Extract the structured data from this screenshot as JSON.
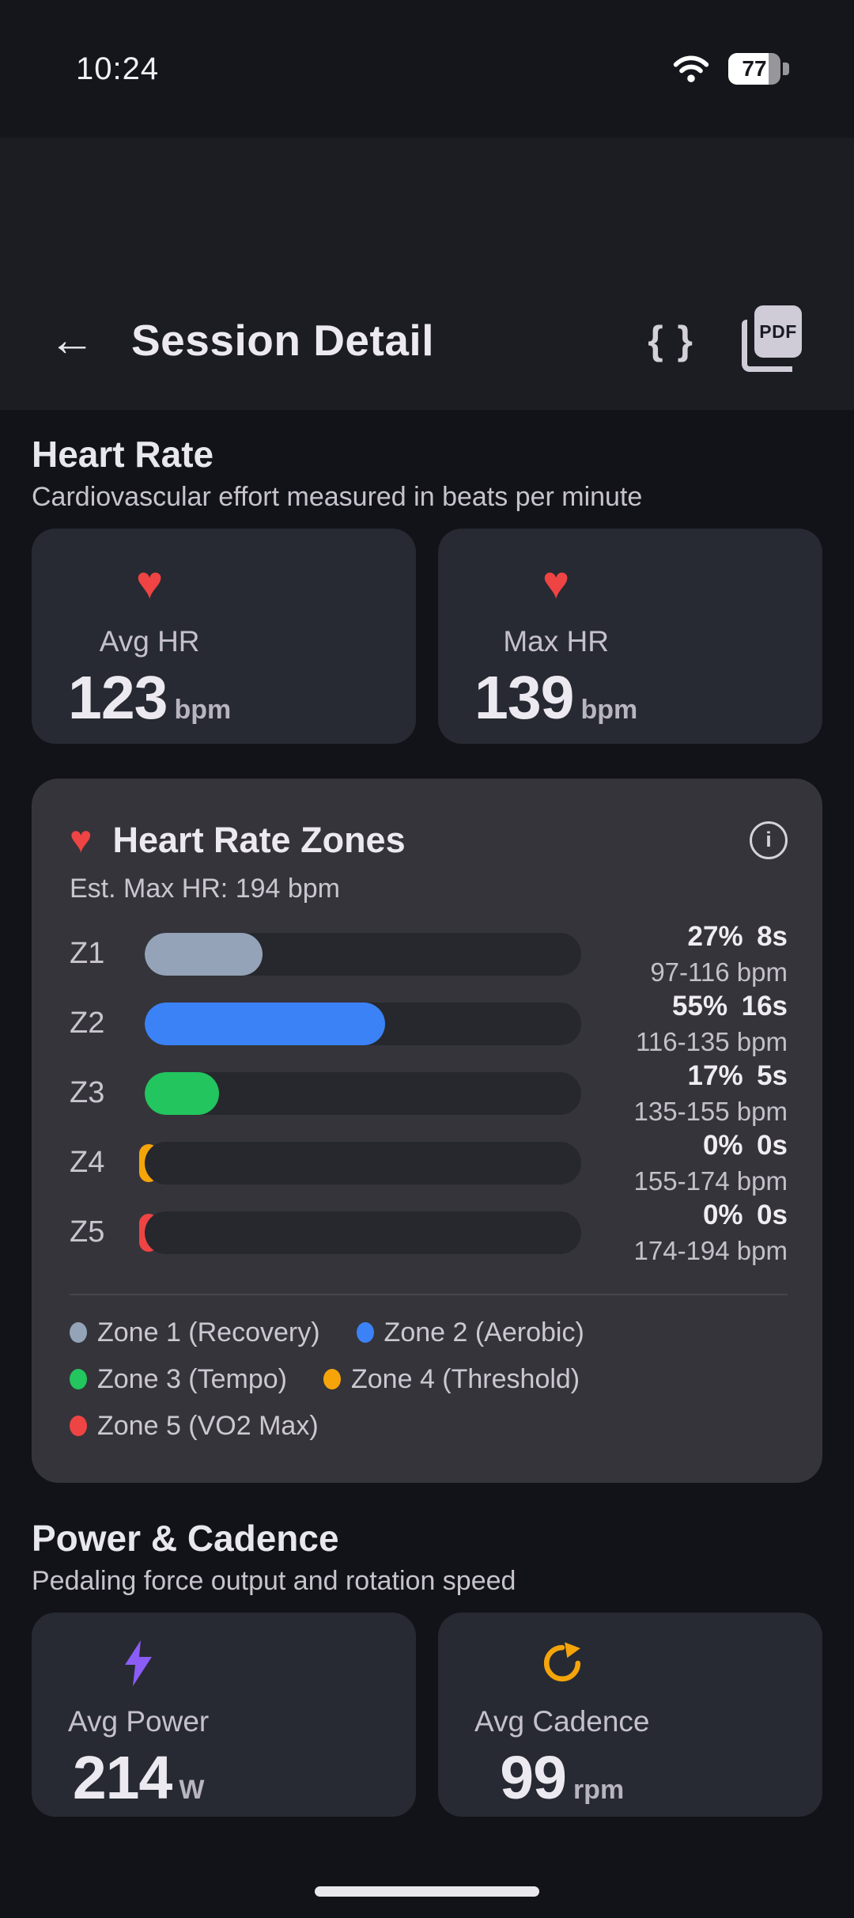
{
  "status_bar": {
    "time": "10:24",
    "battery_percent": "77"
  },
  "header": {
    "back_glyph": "←",
    "title": "Session Detail",
    "braces_glyph": "{ }",
    "pdf_label": "PDF",
    "info_glyph": "i"
  },
  "heart_rate_section": {
    "title": "Heart Rate",
    "subtitle": "Cardiovascular effort measured in beats per minute",
    "stats": [
      {
        "icon": "heart-icon",
        "label": "Avg HR",
        "value": "123",
        "unit": "bpm"
      },
      {
        "icon": "heart-icon",
        "label": "Max HR",
        "value": "139",
        "unit": "bpm"
      }
    ]
  },
  "zones_card": {
    "heart_glyph": "♥",
    "title": "Heart Rate Zones",
    "subtitle": "Est. Max HR: 194 bpm",
    "track_color": "#26282d",
    "zones": [
      {
        "label": "Z1",
        "percent": "27%",
        "time": "8s",
        "range": "97-116 bpm",
        "fill_percent": 27,
        "color": "#94a3b8"
      },
      {
        "label": "Z2",
        "percent": "55%",
        "time": "16s",
        "range": "116-135 bpm",
        "fill_percent": 55,
        "color": "#3b82f6"
      },
      {
        "label": "Z3",
        "percent": "17%",
        "time": "5s",
        "range": "135-155 bpm",
        "fill_percent": 17,
        "color": "#22c55e"
      },
      {
        "label": "Z4",
        "percent": "0%",
        "time": "0s",
        "range": "155-174 bpm",
        "fill_percent": 0,
        "color": "#f5a50a"
      },
      {
        "label": "Z5",
        "percent": "0%",
        "time": "0s",
        "range": "174-194 bpm",
        "fill_percent": 0,
        "color": "#ef4444"
      }
    ],
    "legend": [
      {
        "label": "Zone 1 (Recovery)",
        "color": "#94a3b8"
      },
      {
        "label": "Zone 2 (Aerobic)",
        "color": "#3b82f6"
      },
      {
        "label": "Zone 3 (Tempo)",
        "color": "#22c55e"
      },
      {
        "label": "Zone 4 (Threshold)",
        "color": "#f5a50a"
      },
      {
        "label": "Zone 5 (VO2 Max)",
        "color": "#ef4444"
      }
    ]
  },
  "power_section": {
    "title": "Power & Cadence",
    "subtitle": "Pedaling force output and rotation speed",
    "stats": [
      {
        "icon": "bolt-icon",
        "label": "Avg Power",
        "value": "214",
        "unit": "W"
      },
      {
        "icon": "refresh-icon",
        "label": "Avg Cadence",
        "value": "99",
        "unit": "rpm"
      }
    ]
  },
  "colors": {
    "page_bg": "#121318",
    "status_bar_bg": "#15161b",
    "header_bg": "#1c1d23",
    "stat_card_bg": "#272a32",
    "zones_card_bg": "#35343a",
    "heart_red": "#ef4444",
    "power_purple": "#8b5cf6",
    "cadence_orange": "#f5a50a"
  }
}
